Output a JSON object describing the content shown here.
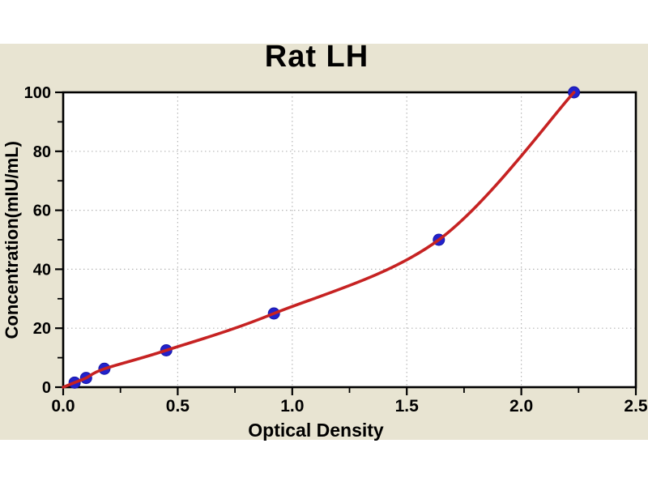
{
  "title": "Rat LH",
  "colors": {
    "page_bg": "#ffffff",
    "figure_bg": "#e8e4d2",
    "plot_bg": "#ffffff",
    "curve": "#c62222",
    "marker": "#2222cc",
    "marker_edge": "#1717a6",
    "grid": "#b5b5b5",
    "axis": "#000000",
    "text": "#000000"
  },
  "chart_data": {
    "type": "scatter",
    "title": "Rat LH",
    "xlabel": "Optical Density",
    "ylabel": "Concentration(mIU/mL)",
    "xlim": [
      0,
      2.5
    ],
    "ylim": [
      0,
      100
    ],
    "x_major_ticks": [
      0,
      0.5,
      1.0,
      1.5,
      2.0,
      2.5
    ],
    "x_tick_labels": [
      "0.0",
      "0.5",
      "1.0",
      "1.5",
      "2.0",
      "2.5"
    ],
    "x_minor_ticks": [
      0.25,
      0.75,
      1.25,
      1.75,
      2.25
    ],
    "y_major_ticks": [
      0,
      20,
      40,
      60,
      80,
      100
    ],
    "y_tick_labels": [
      "0",
      "20",
      "40",
      "60",
      "80",
      "100"
    ],
    "y_minor_ticks": [
      10,
      30,
      50,
      70,
      90
    ],
    "grid": "major-dotted",
    "legend": "none",
    "series": [
      {
        "name": "standard-curve",
        "points": [
          {
            "x": 0.05,
            "y": 1.56
          },
          {
            "x": 0.1,
            "y": 3.13
          },
          {
            "x": 0.18,
            "y": 6.25
          },
          {
            "x": 0.45,
            "y": 12.5
          },
          {
            "x": 0.92,
            "y": 25
          },
          {
            "x": 1.64,
            "y": 50
          },
          {
            "x": 2.23,
            "y": 100
          }
        ],
        "curve_origin": {
          "x": 0,
          "y": 0
        }
      }
    ]
  }
}
